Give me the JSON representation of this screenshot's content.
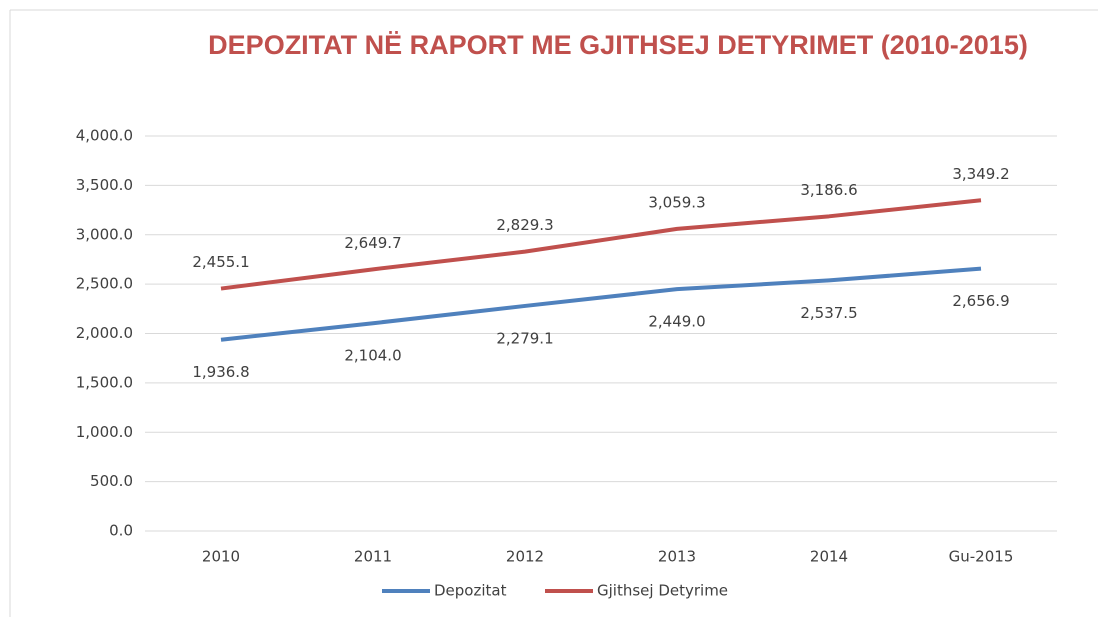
{
  "chart_data": {
    "type": "line",
    "title": "DEPOZITAT NË RAPORT ME GJITHSEJ DETYRIMET (2010-2015)",
    "categories": [
      "2010",
      "2011",
      "2012",
      "2013",
      "2014",
      "Gu-2015"
    ],
    "series": [
      {
        "name": "Depozitat",
        "color": "#4f81bd",
        "values": [
          1936.8,
          2104.0,
          2279.1,
          2449.0,
          2537.5,
          2656.9
        ],
        "value_labels": [
          "1,936.8",
          "2,104.0",
          "2,279.1",
          "2,449.0",
          "2,537.5",
          "2,656.9"
        ]
      },
      {
        "name": "Gjithsej Detyrime",
        "color": "#c0504d",
        "values": [
          2455.1,
          2649.7,
          2829.3,
          3059.3,
          3186.6,
          3349.2
        ],
        "value_labels": [
          "2,455.1",
          "2,649.7",
          "2,829.3",
          "3,059.3",
          "3,186.6",
          "3,349.2"
        ]
      }
    ],
    "ylim": [
      0,
      4000
    ],
    "yticks": [
      {
        "value": 0,
        "label": "0.0"
      },
      {
        "value": 500,
        "label": "500.0"
      },
      {
        "value": 1000,
        "label": "1,000.0"
      },
      {
        "value": 1500,
        "label": "1,500.0"
      },
      {
        "value": 2000,
        "label": "2,000.0"
      },
      {
        "value": 2500,
        "label": "2,500.0"
      },
      {
        "value": 3000,
        "label": "3,000.0"
      },
      {
        "value": 3500,
        "label": "3,500.0"
      },
      {
        "value": 4000,
        "label": "4,000.0"
      }
    ],
    "grid": true,
    "legend": "bottom"
  }
}
